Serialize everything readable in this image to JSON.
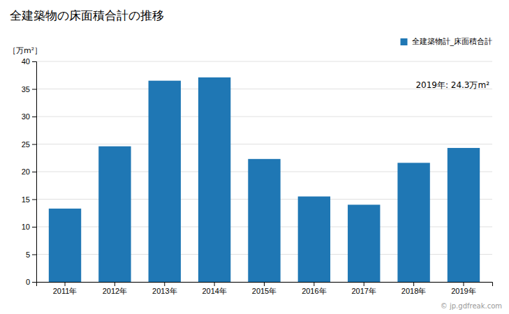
{
  "chart_data": {
    "type": "bar",
    "title": "全建築物の床面積合計の推移",
    "y_label": "［万m²］",
    "categories": [
      "2011年",
      "2012年",
      "2013年",
      "2014年",
      "2015年",
      "2016年",
      "2017年",
      "2018年",
      "2019年"
    ],
    "series": [
      {
        "name": "全建築物計_床面積合計",
        "values": [
          13.3,
          24.6,
          36.5,
          37.1,
          22.3,
          15.5,
          14.0,
          21.6,
          24.3
        ]
      }
    ],
    "ylim": [
      0,
      40
    ],
    "yticks": [
      0,
      5,
      10,
      15,
      20,
      25,
      30,
      35,
      40
    ],
    "grid": true,
    "legend": "upper right",
    "annotations": [
      "2019年: 24.3万m²",
      "© jp.gdfreak.com"
    ]
  }
}
